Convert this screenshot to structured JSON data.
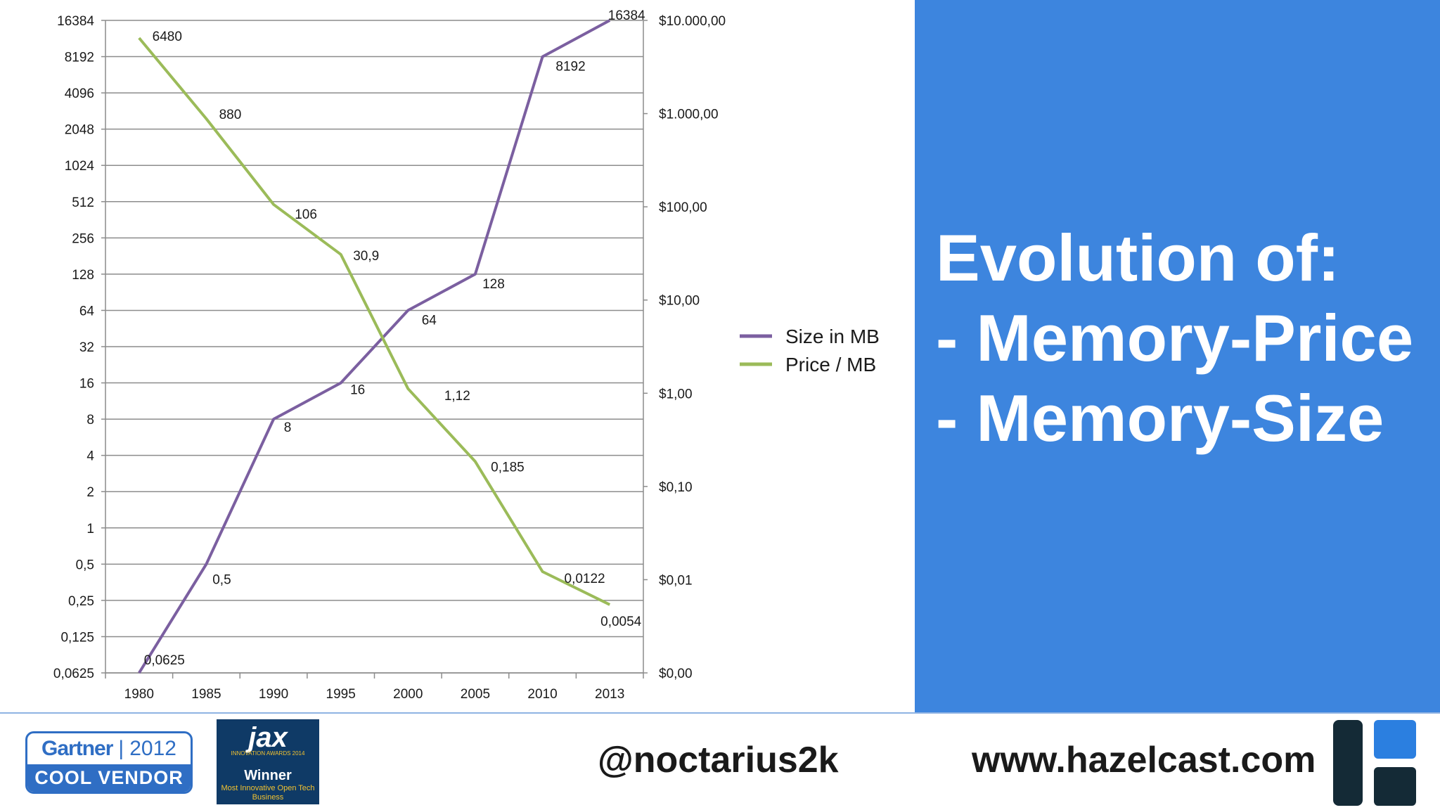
{
  "slide": {
    "title_lines": [
      "Evolution of:",
      "- Memory-Price",
      "- Memory-Size"
    ],
    "accent_color": "#3d85de"
  },
  "chart_data": {
    "type": "line",
    "title": "",
    "xlabel": "",
    "categories": [
      "1980",
      "1985",
      "1990",
      "1995",
      "2000",
      "2005",
      "2010",
      "2013"
    ],
    "grid": true,
    "legend_position": "right",
    "y_left": {
      "scale": "log2",
      "range": [
        0.0625,
        16384
      ],
      "tick_labels": [
        "16384",
        "8192",
        "4096",
        "2048",
        "1024",
        "512",
        "256",
        "128",
        "64",
        "32",
        "16",
        "8",
        "4",
        "2",
        "1",
        "0,5",
        "0,25",
        "0,125",
        "0,0625"
      ]
    },
    "y_right": {
      "scale": "log10",
      "range": [
        0.001,
        10000
      ],
      "tick_labels": [
        "$10.000,00",
        "$1.000,00",
        "$100,00",
        "$10,00",
        "$1,00",
        "$0,10",
        "$0,01",
        "$0,00"
      ]
    },
    "series": [
      {
        "name": "Size in MB",
        "axis": "left",
        "color": "#7b5fa0",
        "values": [
          0.0625,
          0.5,
          8,
          16,
          64,
          128,
          8192,
          16384
        ],
        "labels": [
          "0,0625",
          "0,5",
          "8",
          "16",
          "64",
          "128",
          "8192",
          "16384"
        ]
      },
      {
        "name": "Price / MB",
        "axis": "right",
        "color": "#9bbb59",
        "values": [
          6480,
          880,
          106,
          30.9,
          1.12,
          0.185,
          0.0122,
          0.0054
        ],
        "labels": [
          "6480",
          "880",
          "106",
          "30,9",
          "1,12",
          "0,185",
          "0,0122",
          "0,0054"
        ]
      }
    ]
  },
  "footer": {
    "gartner": {
      "name": "Gartner",
      "separator": "|",
      "year": "2012",
      "tagline": "COOL VENDOR"
    },
    "jax": {
      "logo": "jax",
      "award": "INNOVATION AWARDS 2014",
      "winner": "Winner",
      "category": "Most Innovative Open Tech Business"
    },
    "twitter_handle": "@noctarius2k",
    "website": "www.hazelcast.com",
    "logo_colors": {
      "dark": "#142a36",
      "accent": "#2b7fe0"
    }
  }
}
